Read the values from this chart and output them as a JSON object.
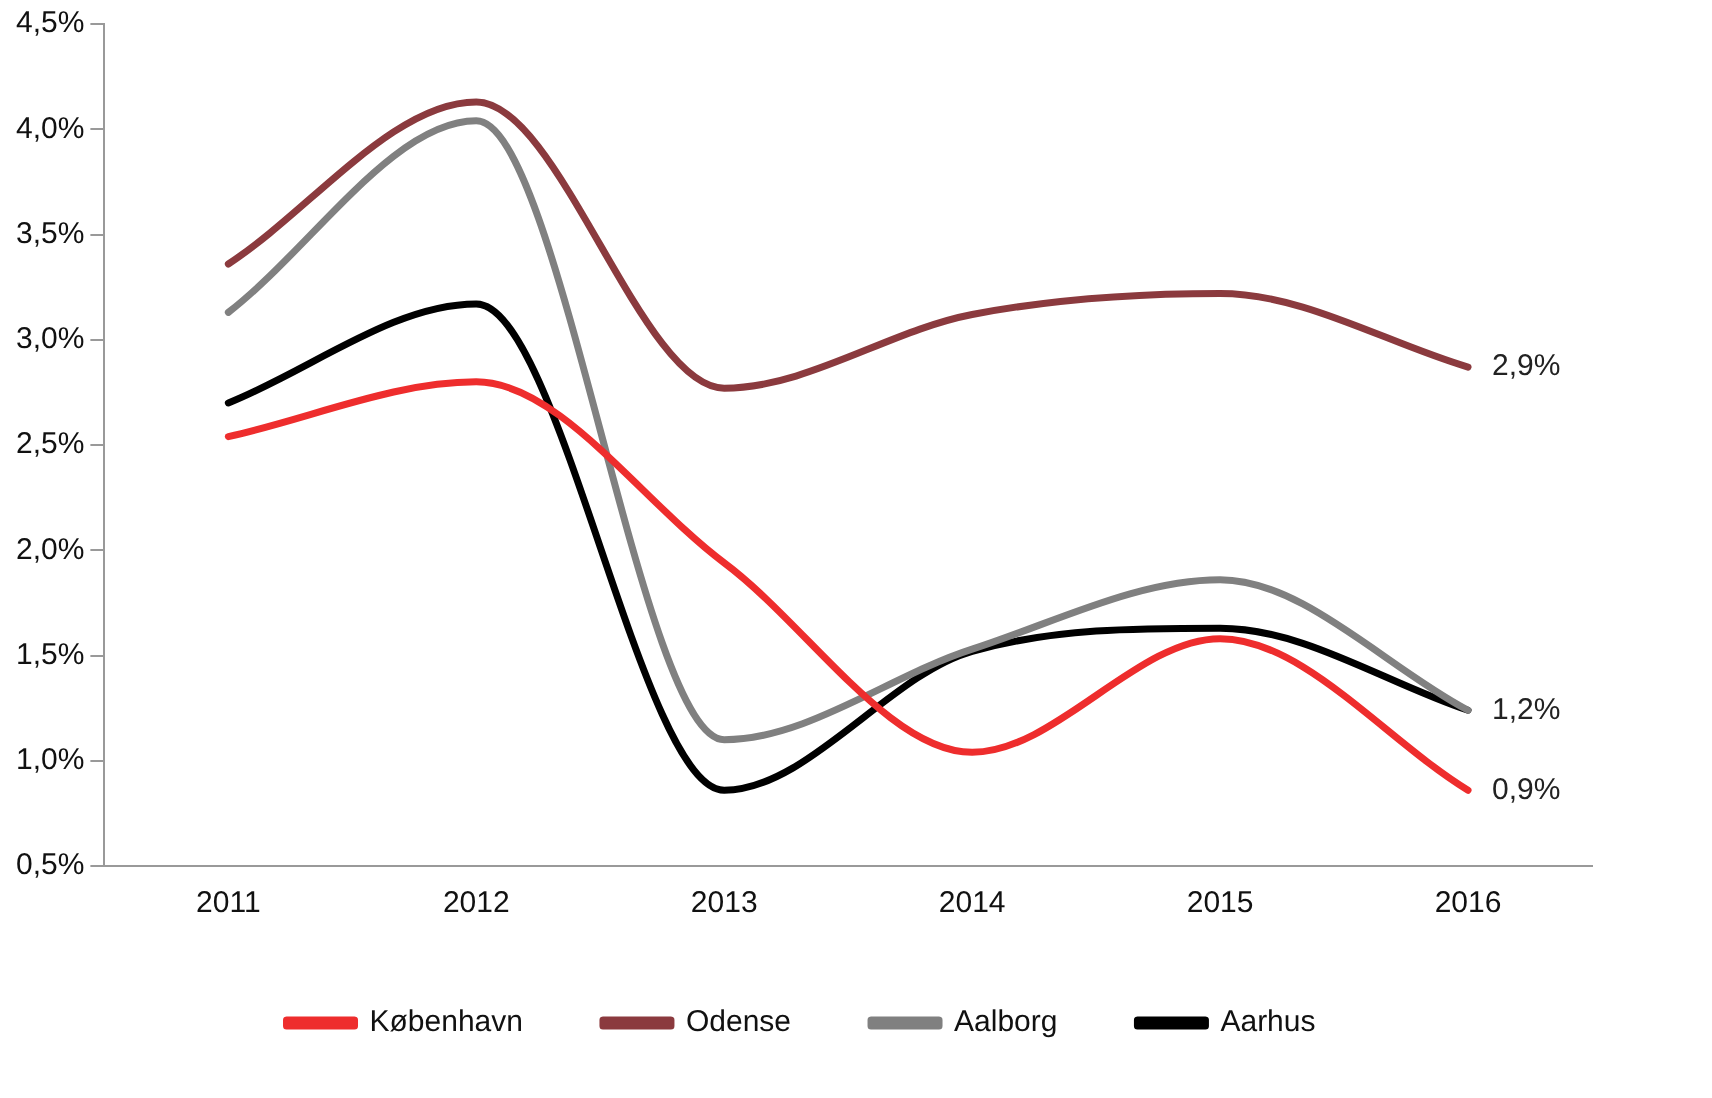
{
  "chart_data": {
    "type": "line",
    "categories": [
      "2011",
      "2012",
      "2013",
      "2014",
      "2015",
      "2016"
    ],
    "series": [
      {
        "name": "København",
        "color": "#ee2d2d",
        "values": [
          2.54,
          2.8,
          1.94,
          1.04,
          1.58,
          0.86
        ],
        "value_labels": [
          null,
          null,
          null,
          null,
          null,
          "0,9%"
        ]
      },
      {
        "name": "Odense",
        "color": "#8b3a3e",
        "values": [
          3.36,
          4.13,
          2.77,
          3.12,
          3.22,
          2.87
        ],
        "value_labels": [
          null,
          null,
          null,
          null,
          null,
          "2,9%"
        ]
      },
      {
        "name": "Aalborg",
        "color": "#808080",
        "values": [
          3.13,
          4.04,
          1.1,
          1.53,
          1.86,
          1.24
        ],
        "value_labels": [
          null,
          null,
          null,
          null,
          null,
          null
        ]
      },
      {
        "name": "Aarhus",
        "color": "#000000",
        "values": [
          2.7,
          3.17,
          0.86,
          1.52,
          1.63,
          1.24
        ],
        "value_labels": [
          null,
          null,
          null,
          null,
          null,
          "1,2%"
        ]
      }
    ],
    "ylim": [
      0.5,
      4.5
    ],
    "yticks": [
      {
        "value": 0.5,
        "label": "0,5%"
      },
      {
        "value": 1,
        "label": "1,0%"
      },
      {
        "value": 1.5,
        "label": "1,5%"
      },
      {
        "value": 2,
        "label": "2,0%"
      },
      {
        "value": 2.5,
        "label": "2,5%"
      },
      {
        "value": 3,
        "label": "3,0%"
      },
      {
        "value": 3.5,
        "label": "3,5%"
      },
      {
        "value": 4,
        "label": "4,0%"
      },
      {
        "value": 4.5,
        "label": "4,5%"
      }
    ],
    "grid": false,
    "legend": "bottom",
    "marker": "none",
    "line_style": "solid"
  }
}
